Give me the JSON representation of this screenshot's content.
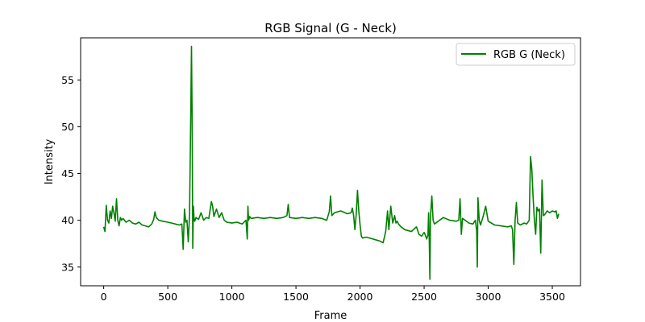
{
  "chart_data": {
    "type": "line",
    "title": "RGB Signal (G - Neck)",
    "xlabel": "Frame",
    "ylabel": "Intensity",
    "xlim": [
      -180,
      3720
    ],
    "ylim": [
      33.0,
      59.5
    ],
    "xticks": [
      0,
      500,
      1000,
      1500,
      2000,
      2500,
      3000,
      3500
    ],
    "yticks": [
      35,
      40,
      45,
      50,
      55
    ],
    "grid": false,
    "legend_position": "top-right",
    "series": [
      {
        "name": "RGB G (Neck)",
        "color": "#008000",
        "x": [
          0,
          10,
          20,
          30,
          40,
          50,
          60,
          70,
          80,
          90,
          100,
          110,
          120,
          130,
          140,
          150,
          175,
          200,
          225,
          250,
          275,
          300,
          325,
          350,
          375,
          390,
          400,
          410,
          430,
          460,
          500,
          530,
          560,
          590,
          610,
          620,
          630,
          640,
          650,
          660,
          670,
          680,
          685,
          690,
          695,
          700,
          705,
          710,
          720,
          740,
          760,
          780,
          800,
          820,
          840,
          850,
          860,
          880,
          900,
          920,
          940,
          960,
          1000,
          1040,
          1080,
          1110,
          1120,
          1125,
          1130,
          1140,
          1150,
          1200,
          1250,
          1300,
          1350,
          1400,
          1430,
          1440,
          1450,
          1500,
          1550,
          1600,
          1650,
          1700,
          1740,
          1760,
          1770,
          1780,
          1800,
          1850,
          1900,
          1930,
          1940,
          1950,
          1960,
          1970,
          1980,
          1990,
          2000,
          2010,
          2020,
          2050,
          2100,
          2150,
          2180,
          2200,
          2215,
          2225,
          2240,
          2255,
          2270,
          2280,
          2290,
          2300,
          2320,
          2350,
          2400,
          2440,
          2460,
          2480,
          2500,
          2510,
          2520,
          2530,
          2535,
          2540,
          2545,
          2550,
          2560,
          2570,
          2580,
          2600,
          2650,
          2700,
          2750,
          2770,
          2780,
          2790,
          2800,
          2850,
          2880,
          2900,
          2910,
          2915,
          2920,
          2930,
          2940,
          2960,
          2980,
          3000,
          3050,
          3100,
          3150,
          3180,
          3190,
          3200,
          3210,
          3220,
          3230,
          3250,
          3280,
          3300,
          3320,
          3330,
          3340,
          3350,
          3360,
          3370,
          3380,
          3390,
          3400,
          3410,
          3420,
          3430,
          3440,
          3460,
          3480,
          3500,
          3520,
          3530,
          3540,
          3550
        ],
        "y": [
          39.3,
          38.8,
          41.6,
          40.0,
          39.7,
          41.0,
          40.2,
          41.5,
          40.8,
          39.9,
          42.3,
          40.0,
          39.4,
          40.3,
          40.0,
          40.2,
          39.8,
          40.0,
          39.7,
          39.6,
          39.8,
          39.5,
          39.4,
          39.3,
          39.6,
          40.1,
          40.9,
          40.3,
          40.0,
          39.9,
          39.8,
          39.7,
          39.6,
          39.5,
          39.6,
          36.9,
          41.2,
          39.8,
          40.0,
          37.7,
          40.6,
          52.0,
          58.6,
          51.0,
          37.0,
          41.5,
          40.2,
          39.9,
          40.3,
          40.1,
          40.8,
          40.0,
          40.3,
          40.2,
          42.0,
          41.5,
          40.4,
          41.2,
          40.3,
          40.8,
          40.0,
          39.8,
          39.7,
          39.8,
          39.6,
          40.0,
          38.0,
          41.5,
          40.0,
          40.4,
          40.2,
          40.3,
          40.2,
          40.3,
          40.2,
          40.3,
          40.5,
          41.7,
          40.3,
          40.2,
          40.3,
          40.2,
          40.3,
          40.2,
          40.0,
          40.9,
          42.6,
          40.5,
          40.8,
          41.0,
          40.7,
          40.8,
          41.3,
          40.5,
          39.0,
          40.6,
          43.2,
          41.0,
          39.5,
          38.3,
          38.1,
          38.2,
          38.0,
          37.8,
          37.6,
          38.8,
          41.0,
          39.0,
          41.5,
          39.7,
          40.5,
          39.7,
          39.9,
          39.6,
          39.3,
          39.0,
          38.8,
          39.3,
          38.5,
          38.3,
          38.7,
          38.4,
          38.0,
          38.4,
          40.8,
          38.0,
          33.7,
          40.5,
          42.6,
          40.0,
          39.6,
          39.8,
          40.3,
          40.0,
          39.9,
          40.0,
          42.3,
          38.5,
          40.2,
          39.7,
          39.6,
          40.0,
          38.9,
          35.0,
          42.4,
          40.0,
          39.5,
          40.4,
          41.5,
          39.9,
          39.5,
          39.4,
          39.3,
          39.4,
          39.0,
          35.3,
          40.0,
          41.9,
          39.7,
          39.5,
          39.7,
          39.6,
          40.0,
          46.8,
          45.5,
          42.5,
          40.0,
          38.5,
          41.4,
          41.0,
          41.2,
          36.5,
          44.3,
          40.5,
          40.6,
          41.0,
          40.8,
          41.0,
          40.9,
          41.0,
          40.2,
          40.7
        ]
      }
    ]
  }
}
